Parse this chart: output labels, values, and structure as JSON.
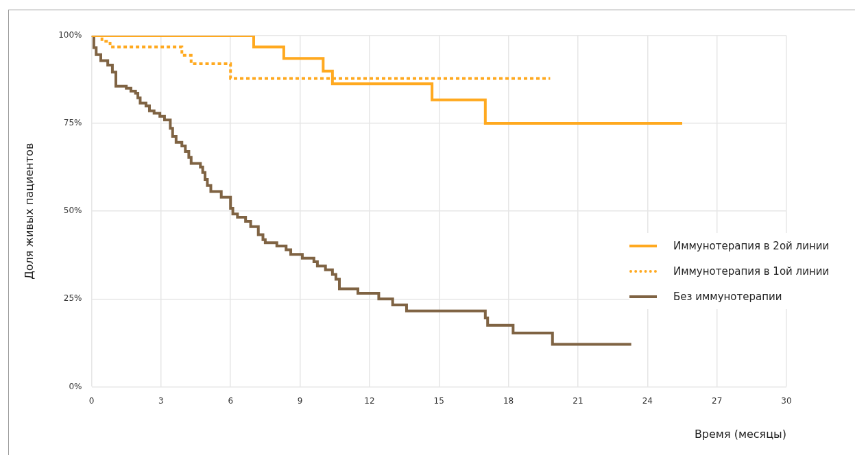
{
  "chart_data": {
    "type": "step",
    "xlabel": "Время (месяцы)",
    "ylabel": "Доля живых пациентов",
    "xlim": [
      0,
      30
    ],
    "xticks": [
      0,
      3,
      6,
      9,
      12,
      15,
      18,
      21,
      24,
      27,
      30
    ],
    "ylim": [
      0,
      100
    ],
    "yticks": [
      {
        "value": 0,
        "label": "0%"
      },
      {
        "value": 25,
        "label": "25%"
      },
      {
        "value": 50,
        "label": "50%"
      },
      {
        "value": 75,
        "label": "75%"
      },
      {
        "value": 100,
        "label": "100%"
      }
    ],
    "grid": true,
    "legend": "right",
    "marker": "none",
    "series": [
      {
        "name": "Иммунотерапия в 2ой линии",
        "color": "#ffa91f",
        "line_style": "solid",
        "x": [
          0,
          7.0,
          8.3,
          10.0,
          10.4,
          14.7,
          17.0,
          25.5
        ],
        "values": [
          100,
          96.8,
          93.5,
          89.9,
          86.3,
          81.7,
          75,
          75
        ]
      },
      {
        "name": "Иммунотерапия в 1ой линии",
        "color": "#ffa91f",
        "line_style": "dotted",
        "x": [
          0,
          0.45,
          0.8,
          3.9,
          4.3,
          6.0,
          19.8
        ],
        "values": [
          100,
          98.4,
          96.8,
          94.4,
          92,
          87.8,
          87.8
        ]
      },
      {
        "name": "Без иммунотерапии",
        "color": "#7f6343",
        "line_style": "solid",
        "x": [
          0,
          0.1,
          0.2,
          0.4,
          0.7,
          0.9,
          1.05,
          1.5,
          1.7,
          1.9,
          2.0,
          2.1,
          2.35,
          2.5,
          2.7,
          2.95,
          3.15,
          3.4,
          3.5,
          3.65,
          3.9,
          4.05,
          4.2,
          4.3,
          4.7,
          4.8,
          4.9,
          5.0,
          5.15,
          5.6,
          6.0,
          6.1,
          6.3,
          6.65,
          6.87,
          7.2,
          7.4,
          7.5,
          8.0,
          8.4,
          8.6,
          9.1,
          9.6,
          9.75,
          10.1,
          10.4,
          10.55,
          10.7,
          11.5,
          12.4,
          13.0,
          13.6,
          17.0,
          17.1,
          18.2,
          19.9,
          23.3
        ],
        "values": [
          100,
          96.6,
          94.6,
          92.9,
          91.6,
          89.6,
          85.6,
          85,
          84.2,
          83.6,
          82.3,
          80.8,
          80,
          78.6,
          77.9,
          77,
          76,
          73.6,
          71.3,
          69.6,
          68.6,
          67,
          65.3,
          63.6,
          62.6,
          61,
          59,
          57.3,
          55.6,
          54,
          50.8,
          49.2,
          48.3,
          47.1,
          45.6,
          43.3,
          41.9,
          41,
          40.1,
          39,
          37.7,
          36.6,
          35.6,
          34.4,
          33.3,
          32,
          30.6,
          27.9,
          26.6,
          25,
          23.3,
          21.6,
          19.6,
          17.5,
          15.3,
          12.1,
          12.1
        ]
      }
    ]
  }
}
